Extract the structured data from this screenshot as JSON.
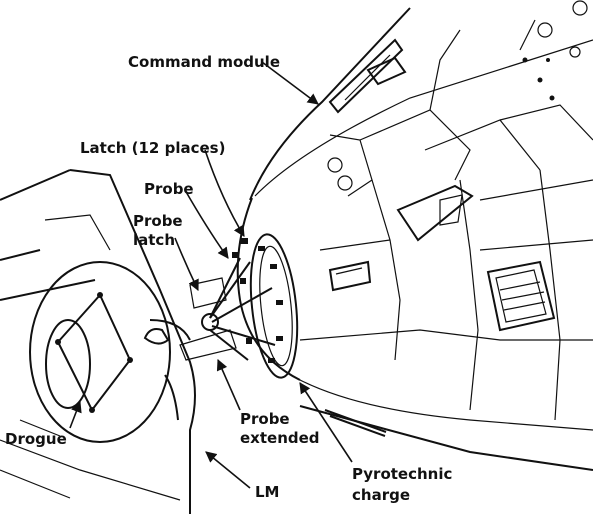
{
  "labels": {
    "command_module": "Command module",
    "latch": "Latch (12 places)",
    "probe": "Probe",
    "probe_latch_line1": "Probe",
    "probe_latch_line2": "latch",
    "drogue": "Drogue",
    "probe_extended_line1": "Probe",
    "probe_extended_line2": "extended",
    "lm": "LM",
    "pyrotechnic_line1": "Pyrotechnic",
    "pyrotechnic_line2": "charge"
  }
}
